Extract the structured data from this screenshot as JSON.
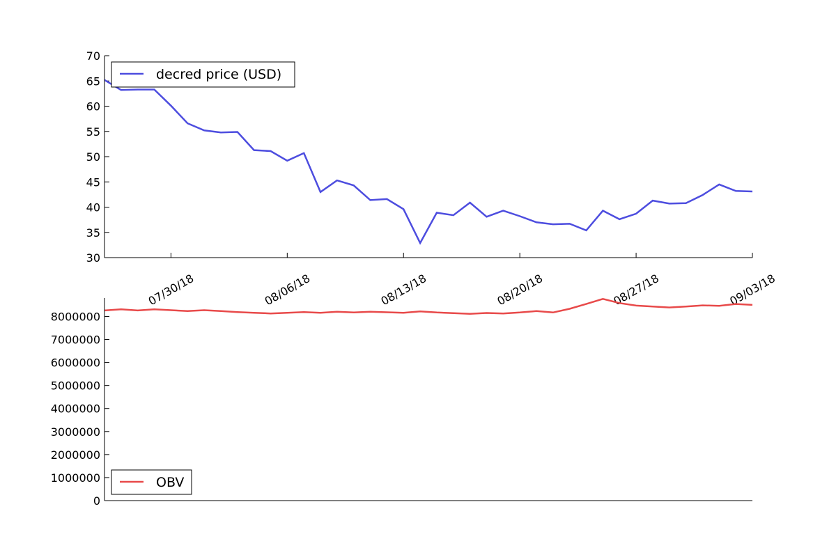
{
  "chart_data": [
    {
      "type": "line",
      "x": [
        "07/26/18",
        "07/27/18",
        "07/28/18",
        "07/29/18",
        "07/30/18",
        "07/31/18",
        "08/01/18",
        "08/02/18",
        "08/03/18",
        "08/04/18",
        "08/05/18",
        "08/06/18",
        "08/07/18",
        "08/08/18",
        "08/09/18",
        "08/10/18",
        "08/11/18",
        "08/12/18",
        "08/13/18",
        "08/14/18",
        "08/15/18",
        "08/16/18",
        "08/17/18",
        "08/18/18",
        "08/19/18",
        "08/20/18",
        "08/21/18",
        "08/22/18",
        "08/23/18",
        "08/24/18",
        "08/25/18",
        "08/26/18",
        "08/27/18",
        "08/28/18",
        "08/29/18",
        "08/30/18",
        "08/31/18",
        "09/01/18",
        "09/02/18",
        "09/03/18"
      ],
      "series": [
        {
          "name": "decred price (USD)",
          "color": "#4d4ddf",
          "values": [
            65.2,
            63.2,
            63.3,
            63.3,
            60.1,
            56.6,
            55.2,
            54.8,
            54.9,
            51.3,
            51.1,
            49.2,
            50.7,
            43.0,
            45.3,
            44.3,
            41.4,
            41.6,
            39.6,
            32.9,
            38.9,
            38.4,
            40.9,
            38.1,
            39.3,
            38.2,
            37.0,
            36.6,
            36.7,
            35.4,
            39.3,
            37.6,
            38.7,
            41.3,
            40.7,
            40.8,
            42.4,
            44.5,
            43.2,
            43.1
          ]
        }
      ],
      "ylim": [
        30,
        70
      ],
      "yticks": [
        30,
        35,
        40,
        45,
        50,
        55,
        60,
        65,
        70
      ],
      "xtick_labels": [
        "07/30/18",
        "08/06/18",
        "08/13/18",
        "08/20/18",
        "08/27/18",
        "09/03/18"
      ],
      "legend": "upper-left"
    },
    {
      "type": "line",
      "x": [
        "07/26/18",
        "07/27/18",
        "07/28/18",
        "07/29/18",
        "07/30/18",
        "07/31/18",
        "08/01/18",
        "08/02/18",
        "08/03/18",
        "08/04/18",
        "08/05/18",
        "08/06/18",
        "08/07/18",
        "08/08/18",
        "08/09/18",
        "08/10/18",
        "08/11/18",
        "08/12/18",
        "08/13/18",
        "08/14/18",
        "08/15/18",
        "08/16/18",
        "08/17/18",
        "08/18/18",
        "08/19/18",
        "08/20/18",
        "08/21/18",
        "08/22/18",
        "08/23/18",
        "08/24/18",
        "08/25/18",
        "08/26/18",
        "08/27/18",
        "08/28/18",
        "08/29/18",
        "08/30/18",
        "08/31/18",
        "09/01/18",
        "09/02/18",
        "09/03/18"
      ],
      "series": [
        {
          "name": "OBV",
          "color": "#e84a4a",
          "values": [
            8260000,
            8310000,
            8260000,
            8310000,
            8270000,
            8230000,
            8270000,
            8230000,
            8190000,
            8160000,
            8130000,
            8160000,
            8190000,
            8160000,
            8200000,
            8170000,
            8200000,
            8180000,
            8160000,
            8220000,
            8170000,
            8140000,
            8110000,
            8150000,
            8130000,
            8170000,
            8230000,
            8170000,
            8330000,
            8540000,
            8760000,
            8580000,
            8470000,
            8430000,
            8390000,
            8430000,
            8480000,
            8460000,
            8540000,
            8500000
          ]
        }
      ],
      "ylim": [
        0,
        8800000
      ],
      "yticks": [
        0,
        1000000,
        2000000,
        3000000,
        4000000,
        5000000,
        6000000,
        7000000,
        8000000
      ],
      "legend": "lower-left"
    }
  ]
}
